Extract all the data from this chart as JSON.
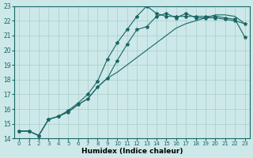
{
  "xlabel": "Humidex (Indice chaleur)",
  "background_color": "#cce8e8",
  "grid_color": "#aacccc",
  "line_color": "#1a6666",
  "x_values": [
    0,
    1,
    2,
    3,
    4,
    5,
    6,
    7,
    8,
    9,
    10,
    11,
    12,
    13,
    14,
    15,
    16,
    17,
    18,
    19,
    20,
    21,
    22,
    23
  ],
  "line1_y": [
    14.5,
    14.5,
    14.2,
    15.3,
    15.5,
    15.8,
    16.3,
    16.7,
    17.5,
    18.1,
    19.3,
    20.4,
    21.4,
    21.6,
    22.3,
    22.5,
    22.2,
    22.5,
    22.2,
    22.2,
    22.2,
    22.1,
    22.0,
    21.8
  ],
  "line2_y": [
    14.5,
    14.5,
    14.2,
    15.3,
    15.5,
    15.9,
    16.4,
    17.0,
    17.9,
    19.4,
    20.5,
    21.4,
    22.3,
    23.0,
    22.5,
    22.3,
    22.3,
    22.3,
    22.3,
    22.3,
    22.3,
    22.2,
    22.1,
    20.9
  ],
  "line3_y": [
    14.5,
    14.5,
    14.2,
    15.3,
    15.5,
    15.8,
    16.3,
    16.7,
    17.5,
    18.1,
    18.5,
    19.0,
    19.5,
    20.0,
    20.5,
    21.0,
    21.5,
    21.8,
    22.0,
    22.2,
    22.4,
    22.4,
    22.3,
    21.8
  ],
  "ylim": [
    14,
    23
  ],
  "xlim_min": -0.5,
  "xlim_max": 23.5,
  "yticks": [
    14,
    15,
    16,
    17,
    18,
    19,
    20,
    21,
    22,
    23
  ],
  "xticks": [
    0,
    1,
    2,
    3,
    4,
    5,
    6,
    7,
    8,
    9,
    10,
    11,
    12,
    13,
    14,
    15,
    16,
    17,
    18,
    19,
    20,
    21,
    22,
    23
  ]
}
